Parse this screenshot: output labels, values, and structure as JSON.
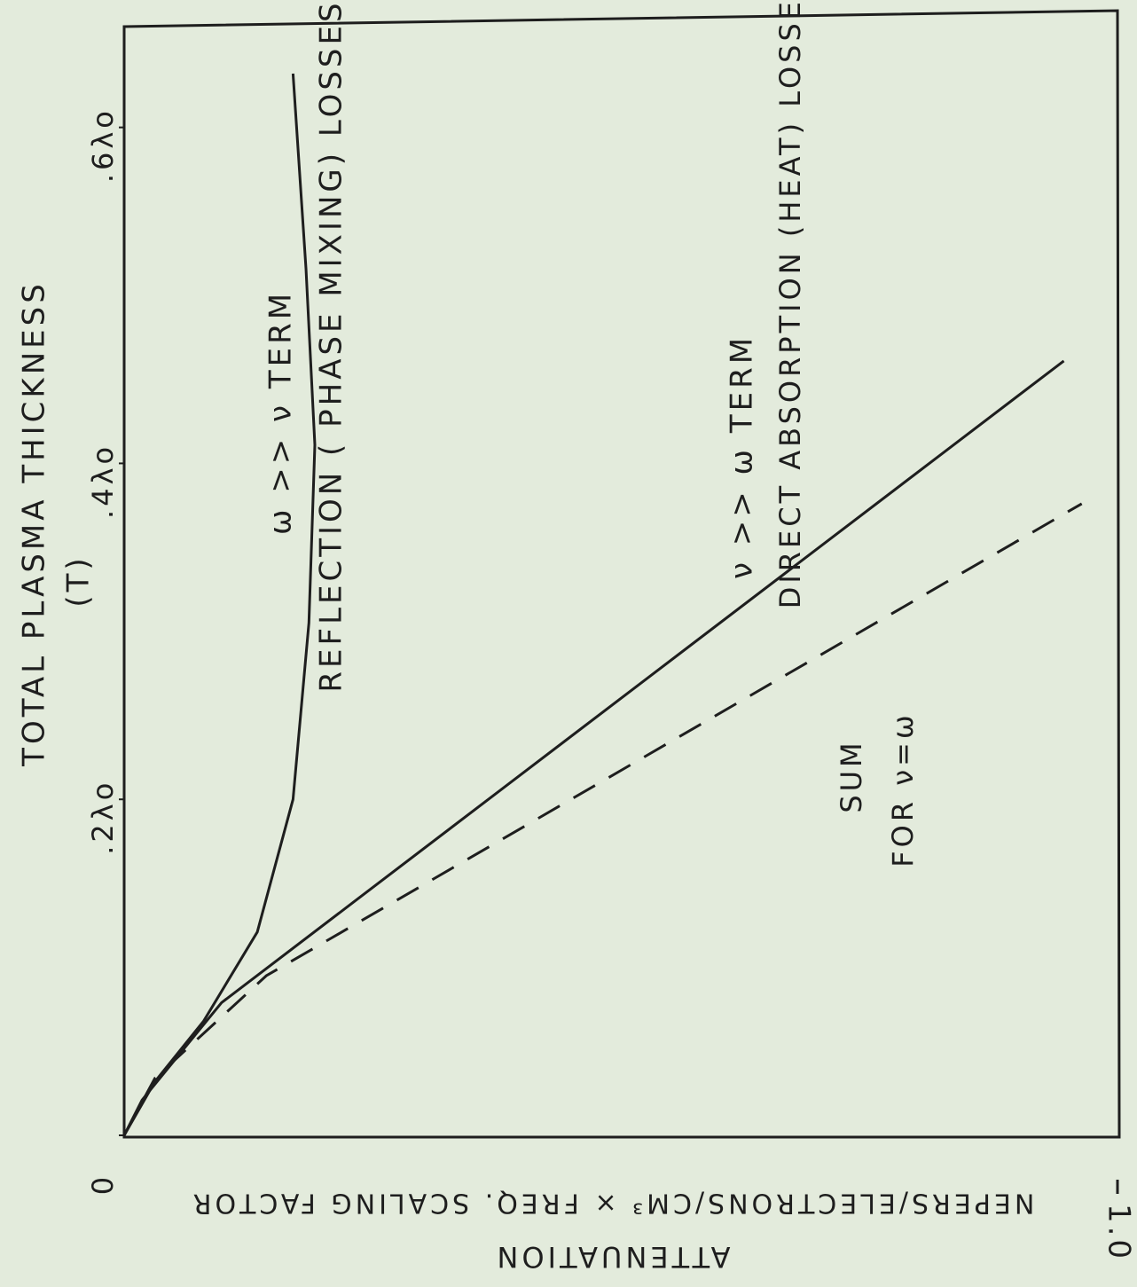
{
  "chart_data": {
    "type": "line",
    "y_label": "TOTAL PLASMA THICKNESS",
    "y_label_sub": "(T)",
    "x_label": "NEPERS/ELECTRONS/CM³ × FREQ. SCALING FACTOR",
    "x_label_sub": "ATTENUATION",
    "xlim": [
      0,
      1.0
    ],
    "xticks": [
      {
        "value": 1.0,
        "label": "1.0"
      }
    ],
    "ylim": [
      0,
      0.66
    ],
    "yticks": [
      {
        "value": 0,
        "label": "0"
      },
      {
        "value": 0.2,
        "label": ".2λo"
      },
      {
        "value": 0.4,
        "label": ".4λo"
      },
      {
        "value": 0.6,
        "label": ".6λo"
      }
    ],
    "series": [
      {
        "color": "#1e1e1e",
        "style": "solid",
        "x": [
          0,
          0.031,
          0.08,
          0.134,
          0.17,
          0.186,
          0.192,
          0.183,
          0.17
        ],
        "values": [
          0,
          0.032,
          0.068,
          0.121,
          0.2,
          0.305,
          0.411,
          0.516,
          0.632
        ]
      },
      {
        "color": "#1e1e1e",
        "style": "solid",
        "x": [
          0,
          0.018,
          0.098,
          0.946
        ],
        "values": [
          0,
          0.021,
          0.079,
          0.461
        ]
      },
      {
        "color": "#1e1e1e",
        "style": "dashed",
        "x": [
          0,
          0.031,
          0.143,
          0.964
        ],
        "values": [
          0,
          0.034,
          0.095,
          0.376
        ]
      }
    ],
    "annotations": [
      "REFLECTION ( PHASE MIXING) LOSSES",
      "ω >> ν TERM",
      "DIRECT ABSORPTION (HEAT) LOSSES",
      "ν >> ω TERM",
      "SUM",
      "FOR ν=ω"
    ]
  }
}
